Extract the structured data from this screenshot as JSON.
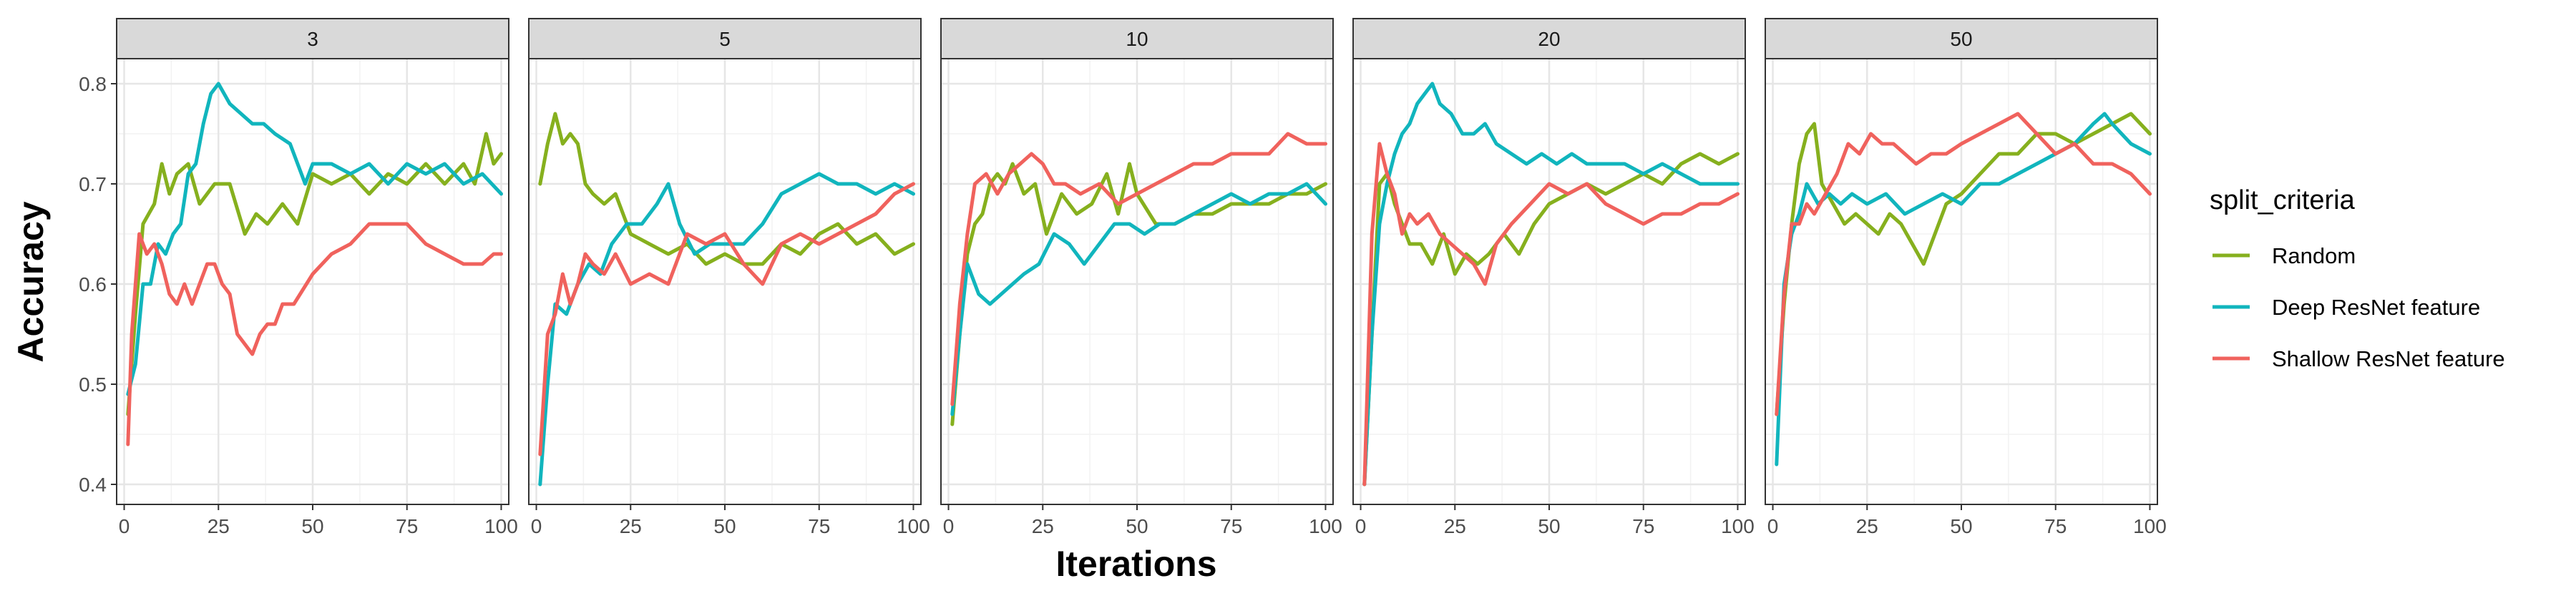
{
  "chart_data": {
    "type": "line",
    "xlabel": "Iterations",
    "ylabel": "Accuracy",
    "xlim": [
      -2,
      102
    ],
    "ylim": [
      0.38,
      0.825
    ],
    "x_ticks": [
      0,
      25,
      50,
      75,
      100
    ],
    "y_ticks": [
      0.4,
      0.5,
      0.6,
      0.7,
      0.8
    ],
    "grid": true,
    "legend": {
      "title": "split_criteria",
      "placement": "right",
      "entries": [
        "Random",
        "Deep ResNet feature",
        "Shallow ResNet feature"
      ]
    },
    "colors": {
      "Random": "#86b01e",
      "Deep ResNet feature": "#11b5bd",
      "Shallow ResNet feature": "#f0625d"
    },
    "panels": [
      {
        "title": "3",
        "series": [
          {
            "name": "Random",
            "x": [
              1,
              3,
              5,
              8,
              10,
              12,
              14,
              17,
              20,
              24,
              28,
              32,
              35,
              38,
              42,
              46,
              50,
              55,
              60,
              65,
              70,
              75,
              80,
              85,
              90,
              93,
              96,
              98,
              100
            ],
            "y": [
              0.47,
              0.57,
              0.66,
              0.68,
              0.72,
              0.69,
              0.71,
              0.72,
              0.68,
              0.7,
              0.7,
              0.65,
              0.67,
              0.66,
              0.68,
              0.66,
              0.71,
              0.7,
              0.71,
              0.69,
              0.71,
              0.7,
              0.72,
              0.7,
              0.72,
              0.7,
              0.75,
              0.72,
              0.73
            ]
          },
          {
            "name": "Deep ResNet feature",
            "x": [
              1,
              3,
              5,
              7,
              9,
              11,
              13,
              15,
              17,
              19,
              21,
              23,
              25,
              28,
              31,
              34,
              37,
              40,
              44,
              48,
              50,
              55,
              60,
              65,
              70,
              75,
              80,
              85,
              90,
              95,
              100
            ],
            "y": [
              0.49,
              0.52,
              0.6,
              0.6,
              0.64,
              0.63,
              0.65,
              0.66,
              0.71,
              0.72,
              0.76,
              0.79,
              0.8,
              0.78,
              0.77,
              0.76,
              0.76,
              0.75,
              0.74,
              0.7,
              0.72,
              0.72,
              0.71,
              0.72,
              0.7,
              0.72,
              0.71,
              0.72,
              0.7,
              0.71,
              0.69
            ]
          },
          {
            "name": "Shallow ResNet feature",
            "x": [
              1,
              2,
              4,
              6,
              8,
              10,
              12,
              14,
              16,
              18,
              20,
              22,
              24,
              26,
              28,
              30,
              32,
              34,
              36,
              38,
              40,
              42,
              45,
              50,
              55,
              60,
              65,
              70,
              75,
              80,
              85,
              90,
              95,
              98,
              100
            ],
            "y": [
              0.44,
              0.55,
              0.65,
              0.63,
              0.64,
              0.62,
              0.59,
              0.58,
              0.6,
              0.58,
              0.6,
              0.62,
              0.62,
              0.6,
              0.59,
              0.55,
              0.54,
              0.53,
              0.55,
              0.56,
              0.56,
              0.58,
              0.58,
              0.61,
              0.63,
              0.64,
              0.66,
              0.66,
              0.66,
              0.64,
              0.63,
              0.62,
              0.62,
              0.63,
              0.63
            ]
          }
        ]
      },
      {
        "title": "5",
        "series": [
          {
            "name": "Random",
            "x": [
              1,
              3,
              5,
              7,
              9,
              11,
              13,
              15,
              18,
              21,
              25,
              30,
              35,
              40,
              45,
              50,
              55,
              60,
              65,
              70,
              75,
              80,
              85,
              90,
              95,
              100
            ],
            "y": [
              0.7,
              0.74,
              0.77,
              0.74,
              0.75,
              0.74,
              0.7,
              0.69,
              0.68,
              0.69,
              0.65,
              0.64,
              0.63,
              0.64,
              0.62,
              0.63,
              0.62,
              0.62,
              0.64,
              0.63,
              0.65,
              0.66,
              0.64,
              0.65,
              0.63,
              0.64
            ]
          },
          {
            "name": "Deep ResNet feature",
            "x": [
              1,
              3,
              5,
              8,
              11,
              14,
              17,
              20,
              24,
              28,
              32,
              35,
              38,
              42,
              46,
              50,
              55,
              60,
              65,
              70,
              75,
              80,
              85,
              90,
              95,
              100
            ],
            "y": [
              0.4,
              0.5,
              0.58,
              0.57,
              0.6,
              0.62,
              0.61,
              0.64,
              0.66,
              0.66,
              0.68,
              0.7,
              0.66,
              0.63,
              0.64,
              0.64,
              0.64,
              0.66,
              0.69,
              0.7,
              0.71,
              0.7,
              0.7,
              0.69,
              0.7,
              0.69
            ]
          },
          {
            "name": "Shallow ResNet feature",
            "x": [
              1,
              3,
              5,
              7,
              9,
              11,
              13,
              15,
              18,
              21,
              25,
              30,
              35,
              40,
              45,
              50,
              55,
              60,
              65,
              70,
              75,
              80,
              85,
              90,
              95,
              100
            ],
            "y": [
              0.43,
              0.55,
              0.57,
              0.61,
              0.58,
              0.6,
              0.63,
              0.62,
              0.61,
              0.63,
              0.6,
              0.61,
              0.6,
              0.65,
              0.64,
              0.65,
              0.62,
              0.6,
              0.64,
              0.65,
              0.64,
              0.65,
              0.66,
              0.67,
              0.69,
              0.7
            ]
          }
        ]
      },
      {
        "title": "10",
        "series": [
          {
            "name": "Random",
            "x": [
              1,
              3,
              5,
              7,
              9,
              11,
              13,
              15,
              17,
              20,
              23,
              26,
              30,
              34,
              38,
              42,
              45,
              48,
              50,
              55,
              60,
              65,
              70,
              75,
              80,
              85,
              90,
              95,
              100
            ],
            "y": [
              0.46,
              0.55,
              0.63,
              0.66,
              0.67,
              0.7,
              0.71,
              0.7,
              0.72,
              0.69,
              0.7,
              0.65,
              0.69,
              0.67,
              0.68,
              0.71,
              0.67,
              0.72,
              0.69,
              0.66,
              0.66,
              0.67,
              0.67,
              0.68,
              0.68,
              0.68,
              0.69,
              0.69,
              0.7
            ]
          },
          {
            "name": "Deep ResNet feature",
            "x": [
              1,
              3,
              5,
              8,
              11,
              14,
              17,
              20,
              24,
              28,
              32,
              36,
              40,
              44,
              48,
              52,
              56,
              60,
              65,
              70,
              75,
              80,
              85,
              90,
              95,
              100
            ],
            "y": [
              0.47,
              0.55,
              0.62,
              0.59,
              0.58,
              0.59,
              0.6,
              0.61,
              0.62,
              0.65,
              0.64,
              0.62,
              0.64,
              0.66,
              0.66,
              0.65,
              0.66,
              0.66,
              0.67,
              0.68,
              0.69,
              0.68,
              0.69,
              0.69,
              0.7,
              0.68
            ]
          },
          {
            "name": "Shallow ResNet feature",
            "x": [
              1,
              3,
              5,
              7,
              10,
              13,
              16,
              19,
              22,
              25,
              28,
              31,
              35,
              40,
              45,
              50,
              55,
              60,
              65,
              70,
              75,
              80,
              85,
              90,
              95,
              100
            ],
            "y": [
              0.48,
              0.58,
              0.65,
              0.7,
              0.71,
              0.69,
              0.71,
              0.72,
              0.73,
              0.72,
              0.7,
              0.7,
              0.69,
              0.7,
              0.68,
              0.69,
              0.7,
              0.71,
              0.72,
              0.72,
              0.73,
              0.73,
              0.73,
              0.75,
              0.74,
              0.74
            ]
          }
        ]
      },
      {
        "title": "20",
        "series": [
          {
            "name": "Random",
            "x": [
              1,
              3,
              5,
              7,
              9,
              11,
              13,
              16,
              19,
              22,
              25,
              28,
              31,
              34,
              38,
              42,
              46,
              50,
              55,
              60,
              65,
              70,
              75,
              80,
              85,
              90,
              95,
              100
            ],
            "y": [
              0.4,
              0.55,
              0.7,
              0.71,
              0.68,
              0.66,
              0.64,
              0.64,
              0.62,
              0.65,
              0.61,
              0.63,
              0.62,
              0.63,
              0.65,
              0.63,
              0.66,
              0.68,
              0.69,
              0.7,
              0.69,
              0.7,
              0.71,
              0.7,
              0.72,
              0.73,
              0.72,
              0.73
            ]
          },
          {
            "name": "Deep ResNet feature",
            "x": [
              1,
              3,
              5,
              7,
              9,
              11,
              13,
              15,
              17,
              19,
              21,
              24,
              27,
              30,
              33,
              36,
              40,
              44,
              48,
              52,
              56,
              60,
              65,
              70,
              75,
              80,
              85,
              90,
              95,
              100
            ],
            "y": [
              0.4,
              0.55,
              0.66,
              0.7,
              0.73,
              0.75,
              0.76,
              0.78,
              0.79,
              0.8,
              0.78,
              0.77,
              0.75,
              0.75,
              0.76,
              0.74,
              0.73,
              0.72,
              0.73,
              0.72,
              0.73,
              0.72,
              0.72,
              0.72,
              0.71,
              0.72,
              0.71,
              0.7,
              0.7,
              0.7
            ]
          },
          {
            "name": "Shallow ResNet feature",
            "x": [
              1,
              3,
              5,
              7,
              9,
              11,
              13,
              15,
              18,
              21,
              24,
              27,
              30,
              33,
              36,
              40,
              45,
              50,
              55,
              60,
              65,
              70,
              75,
              80,
              85,
              90,
              95,
              100
            ],
            "y": [
              0.4,
              0.65,
              0.74,
              0.71,
              0.69,
              0.65,
              0.67,
              0.66,
              0.67,
              0.65,
              0.64,
              0.63,
              0.62,
              0.6,
              0.64,
              0.66,
              0.68,
              0.7,
              0.69,
              0.7,
              0.68,
              0.67,
              0.66,
              0.67,
              0.67,
              0.68,
              0.68,
              0.69
            ]
          }
        ]
      },
      {
        "title": "50",
        "series": [
          {
            "name": "Random",
            "x": [
              1,
              3,
              5,
              7,
              9,
              11,
              13,
              16,
              19,
              22,
              25,
              28,
              31,
              34,
              37,
              40,
              43,
              46,
              50,
              55,
              60,
              65,
              70,
              75,
              80,
              85,
              90,
              95,
              100
            ],
            "y": [
              0.47,
              0.58,
              0.66,
              0.72,
              0.75,
              0.76,
              0.7,
              0.68,
              0.66,
              0.67,
              0.66,
              0.65,
              0.67,
              0.66,
              0.64,
              0.62,
              0.65,
              0.68,
              0.69,
              0.71,
              0.73,
              0.73,
              0.75,
              0.75,
              0.74,
              0.75,
              0.76,
              0.77,
              0.75
            ]
          },
          {
            "name": "Deep ResNet feature",
            "x": [
              1,
              3,
              5,
              7,
              9,
              12,
              15,
              18,
              21,
              25,
              30,
              35,
              40,
              45,
              50,
              55,
              60,
              65,
              70,
              75,
              80,
              85,
              88,
              90,
              95,
              100
            ],
            "y": [
              0.42,
              0.6,
              0.65,
              0.67,
              0.7,
              0.68,
              0.69,
              0.68,
              0.69,
              0.68,
              0.69,
              0.67,
              0.68,
              0.69,
              0.68,
              0.7,
              0.7,
              0.71,
              0.72,
              0.73,
              0.74,
              0.76,
              0.77,
              0.76,
              0.74,
              0.73
            ]
          },
          {
            "name": "Shallow ResNet feature",
            "x": [
              1,
              3,
              5,
              7,
              9,
              11,
              14,
              17,
              20,
              23,
              26,
              29,
              32,
              35,
              38,
              42,
              46,
              50,
              55,
              60,
              65,
              70,
              75,
              80,
              85,
              90,
              95,
              100
            ],
            "y": [
              0.47,
              0.59,
              0.66,
              0.66,
              0.68,
              0.67,
              0.69,
              0.71,
              0.74,
              0.73,
              0.75,
              0.74,
              0.74,
              0.73,
              0.72,
              0.73,
              0.73,
              0.74,
              0.75,
              0.76,
              0.77,
              0.75,
              0.73,
              0.74,
              0.72,
              0.72,
              0.71,
              0.69
            ]
          }
        ]
      }
    ]
  }
}
